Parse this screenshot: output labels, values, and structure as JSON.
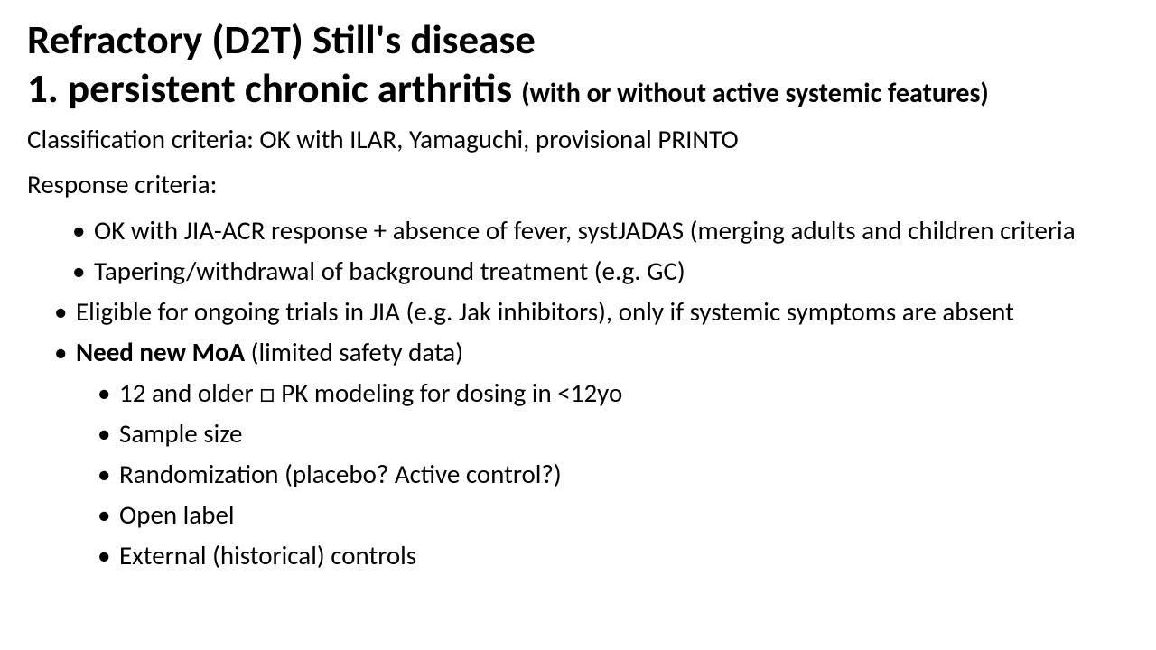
{
  "title": {
    "line1": "Refractory (D2T) Still's disease",
    "line2_main": "1. persistent chronic arthritis",
    "line2_paren": "(with or without active systemic features)"
  },
  "body": {
    "classification": "Classification criteria: OK with ILAR, Yamaguchi, provisional PRINTO",
    "response_label": "Response criteria:",
    "response_bullets": [
      "OK with JIA-ACR response + absence of fever, systJADAS (merging adults and children criteria",
      "Tapering/withdrawal of background treatment (e.g. GC)"
    ],
    "eligible": "Eligible for ongoing trials in JIA (e.g. Jak inhibitors), only if systemic symptoms are absent",
    "need_moa_bold": "Need new MoA",
    "need_moa_rest": " (limited safety data)",
    "moa_subbullets": [
      "12 and older □ PK modeling for dosing in <12yo",
      "Sample size",
      "Randomization (placebo? Active control?)",
      "Open label",
      "External  (historical) controls"
    ]
  },
  "style": {
    "background_color": "#ffffff",
    "text_color": "#000000",
    "title_fontsize": 45,
    "title_paren_fontsize": 30,
    "body_fontsize": 29,
    "font_family": "Calibri"
  }
}
